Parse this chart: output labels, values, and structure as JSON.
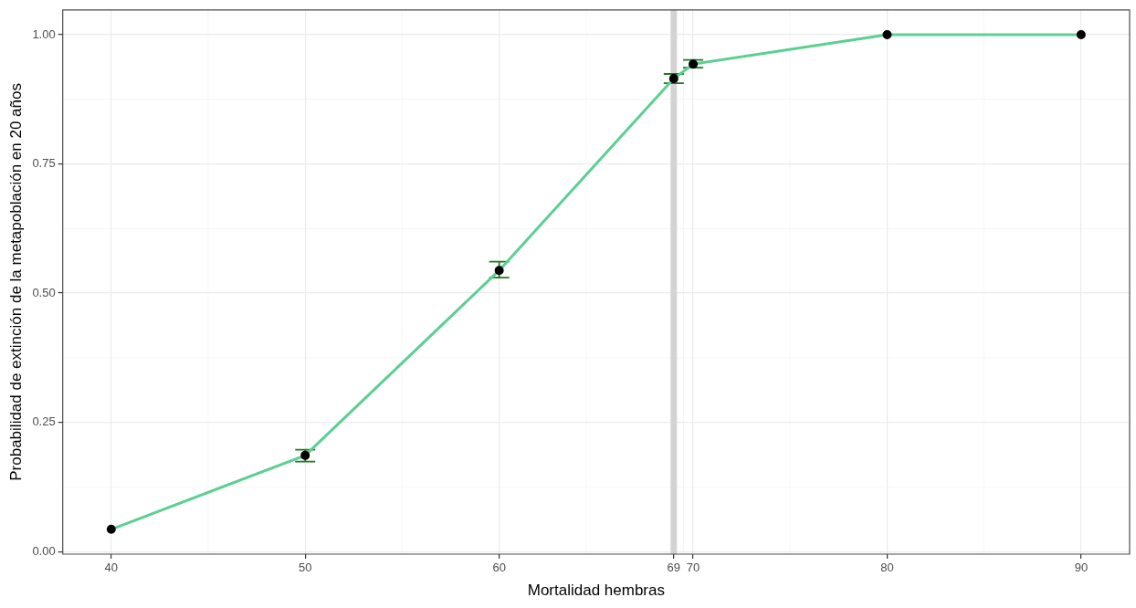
{
  "chart_data": {
    "type": "line",
    "xlabel": "Mortalidad hembras",
    "ylabel": "Probabilidad de extinción de la metapoblación en 20 años",
    "x": [
      40,
      50,
      60,
      69,
      70,
      80,
      90
    ],
    "series": [
      {
        "color": "#5ccf92",
        "values": [
          0.043,
          0.186,
          0.544,
          0.915,
          0.943,
          1.0,
          1.0
        ],
        "errors": [
          null,
          [
            0.174,
            0.197
          ],
          [
            0.53,
            0.561
          ],
          [
            0.906,
            0.924
          ],
          [
            0.936,
            0.951
          ],
          null,
          null
        ]
      }
    ],
    "xlim": [
      37.5,
      92.5
    ],
    "xticks": [
      40,
      50,
      60,
      69,
      70,
      80,
      90
    ],
    "ylim": [
      -0.005,
      1.048
    ],
    "yticks": [
      {
        "value": 0,
        "label": "0.00"
      },
      {
        "value": 0.25,
        "label": "0.25"
      },
      {
        "value": 0.5,
        "label": "0.50"
      },
      {
        "value": 0.75,
        "label": "0.75"
      },
      {
        "value": 1,
        "label": "1.00"
      }
    ],
    "ref_lines": [
      {
        "axis": "x",
        "value": 69,
        "color": "#d3d3d3"
      }
    ],
    "grid": true,
    "legend": false,
    "marker": "circle",
    "line_style": "solid"
  }
}
